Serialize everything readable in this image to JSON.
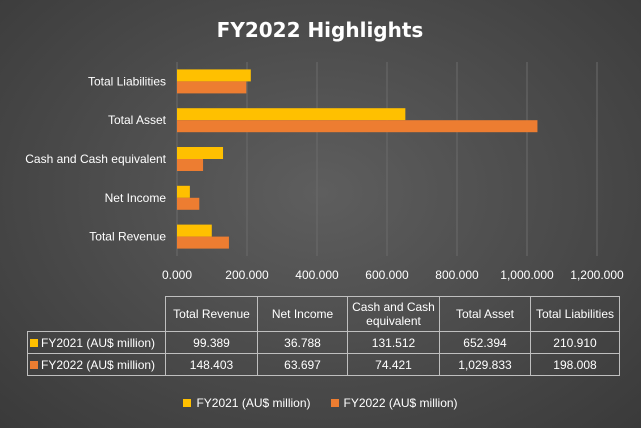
{
  "chart_data": {
    "type": "bar",
    "orientation": "horizontal",
    "title": "FY2022 Highlights",
    "categories": [
      "Total Revenue",
      "Net Income",
      "Cash and Cash equivalent",
      "Total Asset",
      "Total Liabilities"
    ],
    "series": [
      {
        "name": "FY2021 (AU$ million)",
        "values": [
          99.389,
          36.788,
          131.512,
          652.394,
          210.91
        ],
        "display": [
          "99.389",
          "36.788",
          "131.512",
          "652.394",
          "210.910"
        ],
        "color": "#FFC000"
      },
      {
        "name": "FY2022 (AU$ million)",
        "values": [
          148.403,
          63.697,
          74.421,
          1029.833,
          198.008
        ],
        "display": [
          "148.403",
          "63.697",
          "74.421",
          "1,029.833",
          "198.008"
        ],
        "color": "#ED7D31"
      }
    ],
    "xlim": [
      0,
      1200
    ],
    "xticks": [
      0,
      200,
      400,
      600,
      800,
      1000,
      1200
    ],
    "xtick_labels": [
      "0.000",
      "200.000",
      "400.000",
      "600.000",
      "800.000",
      "1,000.000",
      "1,200.000"
    ],
    "grid": true,
    "data_table": true,
    "legend": "bottom",
    "xlabel": "",
    "ylabel": ""
  }
}
